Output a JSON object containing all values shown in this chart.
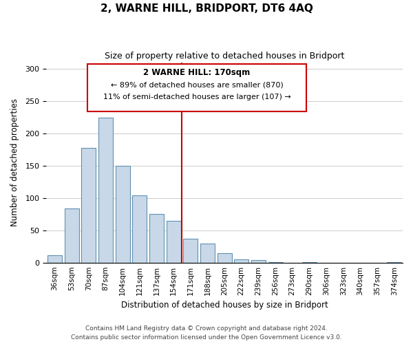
{
  "title": "2, WARNE HILL, BRIDPORT, DT6 4AQ",
  "subtitle": "Size of property relative to detached houses in Bridport",
  "xlabel": "Distribution of detached houses by size in Bridport",
  "ylabel": "Number of detached properties",
  "bar_labels": [
    "36sqm",
    "53sqm",
    "70sqm",
    "87sqm",
    "104sqm",
    "121sqm",
    "137sqm",
    "154sqm",
    "171sqm",
    "188sqm",
    "205sqm",
    "222sqm",
    "239sqm",
    "256sqm",
    "273sqm",
    "290sqm",
    "306sqm",
    "323sqm",
    "340sqm",
    "357sqm",
    "374sqm"
  ],
  "bar_values": [
    11,
    84,
    178,
    224,
    150,
    104,
    75,
    65,
    37,
    30,
    15,
    5,
    4,
    1,
    0,
    1,
    0,
    0,
    0,
    0,
    1
  ],
  "bar_color": "#c8d8e8",
  "bar_edge_color": "#6090b0",
  "vline_color": "#cc0000",
  "annotation_title": "2 WARNE HILL: 170sqm",
  "annotation_line1": "← 89% of detached houses are smaller (870)",
  "annotation_line2": "11% of semi-detached houses are larger (107) →",
  "annotation_box_edge": "#cc0000",
  "ylim": [
    0,
    310
  ],
  "yticks": [
    0,
    50,
    100,
    150,
    200,
    250,
    300
  ],
  "footer1": "Contains HM Land Registry data © Crown copyright and database right 2024.",
  "footer2": "Contains public sector information licensed under the Open Government Licence v3.0."
}
